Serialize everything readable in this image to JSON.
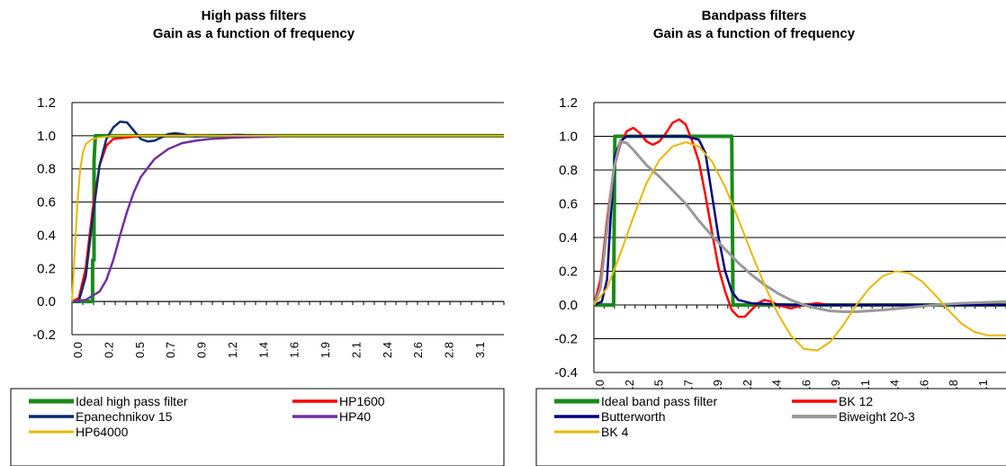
{
  "chart_data": [
    {
      "type": "line",
      "title": "High pass filters",
      "subtitle": "Gain as a function of frequency",
      "ylim": [
        -0.2,
        1.2
      ],
      "xlim": [
        0,
        3.14
      ],
      "yticks": [
        "1.2",
        "1.0",
        "0.8",
        "0.6",
        "0.4",
        "0.2",
        "0.0",
        "-0.2"
      ],
      "xticks": [
        "0.0",
        "0.2",
        "0.5",
        "0.7",
        "0.9",
        "1.2",
        "1.4",
        "1.6",
        "1.9",
        "2.1",
        "2.4",
        "2.6",
        "2.8",
        "3.1"
      ],
      "grid": true,
      "legend_position": "bottom",
      "series": [
        {
          "name": "Ideal high pass filter",
          "color": "#1a8a1a",
          "width": 4,
          "points": [
            [
              0,
              0
            ],
            [
              0.15,
              0
            ],
            [
              0.15,
              0.25
            ],
            [
              0.16,
              0.25
            ],
            [
              0.16,
              0.85
            ],
            [
              0.17,
              1
            ],
            [
              3.14,
              1
            ]
          ]
        },
        {
          "name": "HP1600",
          "color": "#ff0000",
          "width": 2.5,
          "points": [
            [
              0,
              0
            ],
            [
              0.05,
              0.02
            ],
            [
              0.1,
              0.2
            ],
            [
              0.15,
              0.55
            ],
            [
              0.2,
              0.82
            ],
            [
              0.25,
              0.94
            ],
            [
              0.3,
              0.98
            ],
            [
              0.4,
              0.99
            ],
            [
              0.5,
              1
            ],
            [
              3.14,
              1
            ]
          ]
        },
        {
          "name": "Epanechnikov 15",
          "color": "#0a2a6e",
          "width": 2.5,
          "points": [
            [
              0,
              0
            ],
            [
              0.05,
              0
            ],
            [
              0.1,
              0.15
            ],
            [
              0.15,
              0.5
            ],
            [
              0.2,
              0.82
            ],
            [
              0.25,
              0.98
            ],
            [
              0.3,
              1.05
            ],
            [
              0.35,
              1.085
            ],
            [
              0.4,
              1.08
            ],
            [
              0.45,
              1.03
            ],
            [
              0.5,
              0.98
            ],
            [
              0.55,
              0.965
            ],
            [
              0.6,
              0.97
            ],
            [
              0.65,
              0.99
            ],
            [
              0.7,
              1.01
            ],
            [
              0.75,
              1.015
            ],
            [
              0.8,
              1.01
            ],
            [
              0.85,
              1.0
            ],
            [
              0.9,
              0.995
            ],
            [
              1.0,
              1.0
            ],
            [
              1.2,
              1.005
            ],
            [
              1.4,
              1.0
            ],
            [
              3.14,
              1
            ]
          ]
        },
        {
          "name": "HP40",
          "color": "#7030a0",
          "width": 2.5,
          "points": [
            [
              0,
              0
            ],
            [
              0.1,
              0.01
            ],
            [
              0.2,
              0.06
            ],
            [
              0.25,
              0.13
            ],
            [
              0.3,
              0.25
            ],
            [
              0.35,
              0.4
            ],
            [
              0.4,
              0.54
            ],
            [
              0.45,
              0.66
            ],
            [
              0.5,
              0.75
            ],
            [
              0.6,
              0.86
            ],
            [
              0.7,
              0.92
            ],
            [
              0.8,
              0.955
            ],
            [
              0.9,
              0.97
            ],
            [
              1.0,
              0.98
            ],
            [
              1.2,
              0.99
            ],
            [
              1.5,
              0.995
            ]
          ]
        },
        {
          "name": "HP64000",
          "color": "#e6b800",
          "width": 2,
          "points": [
            [
              0,
              0
            ],
            [
              0.02,
              0.3
            ],
            [
              0.04,
              0.6
            ],
            [
              0.06,
              0.8
            ],
            [
              0.08,
              0.9
            ],
            [
              0.1,
              0.95
            ],
            [
              0.15,
              0.98
            ],
            [
              0.2,
              0.99
            ],
            [
              0.3,
              1
            ],
            [
              3.14,
              1
            ]
          ]
        }
      ]
    },
    {
      "type": "line",
      "title": "Bandpass filters",
      "subtitle": "Gain as a function of frequency",
      "ylim": [
        -0.4,
        1.2
      ],
      "xlim": [
        0,
        3.14
      ],
      "yticks": [
        "1.2",
        "1.0",
        "0.8",
        "0.6",
        "0.4",
        "0.2",
        "0.0",
        "-0.2",
        "-0.4"
      ],
      "xticks": [
        "0.0",
        "0.2",
        "0.5",
        "0.7",
        "0.9",
        "1.2",
        "1.4",
        "1.6",
        "1.9",
        "2.1",
        "2.4",
        "2.6",
        "2.8",
        "3.1"
      ],
      "grid": true,
      "legend_position": "bottom",
      "series": [
        {
          "name": "Ideal band pass filter",
          "color": "#1a8a1a",
          "width": 4,
          "points": [
            [
              0,
              0
            ],
            [
              0.15,
              0
            ],
            [
              0.16,
              1
            ],
            [
              1.05,
              1
            ],
            [
              1.06,
              0
            ],
            [
              3.14,
              0
            ]
          ]
        },
        {
          "name": "BK 12",
          "color": "#ff0000",
          "width": 2.5,
          "points": [
            [
              0,
              0
            ],
            [
              0.05,
              0.15
            ],
            [
              0.1,
              0.5
            ],
            [
              0.15,
              0.8
            ],
            [
              0.2,
              0.95
            ],
            [
              0.25,
              1.03
            ],
            [
              0.3,
              1.05
            ],
            [
              0.35,
              1.02
            ],
            [
              0.4,
              0.97
            ],
            [
              0.45,
              0.95
            ],
            [
              0.5,
              0.97
            ],
            [
              0.55,
              1.02
            ],
            [
              0.6,
              1.08
            ],
            [
              0.65,
              1.1
            ],
            [
              0.7,
              1.07
            ],
            [
              0.75,
              0.97
            ],
            [
              0.8,
              0.85
            ],
            [
              0.85,
              0.65
            ],
            [
              0.9,
              0.43
            ],
            [
              0.95,
              0.22
            ],
            [
              1.0,
              0.08
            ],
            [
              1.05,
              -0.03
            ],
            [
              1.1,
              -0.07
            ],
            [
              1.15,
              -0.07
            ],
            [
              1.2,
              -0.03
            ],
            [
              1.25,
              0.01
            ],
            [
              1.3,
              0.03
            ],
            [
              1.35,
              0.02
            ],
            [
              1.4,
              0.0
            ],
            [
              1.5,
              -0.02
            ],
            [
              1.6,
              0.0
            ],
            [
              1.7,
              0.01
            ],
            [
              1.8,
              0.0
            ],
            [
              2.0,
              0.0
            ],
            [
              3.14,
              0
            ]
          ]
        },
        {
          "name": "Butterworth",
          "color": "#000080",
          "width": 2.5,
          "points": [
            [
              0,
              0
            ],
            [
              0.06,
              0.02
            ],
            [
              0.1,
              0.15
            ],
            [
              0.13,
              0.55
            ],
            [
              0.16,
              0.88
            ],
            [
              0.2,
              0.97
            ],
            [
              0.25,
              1.0
            ],
            [
              0.7,
              1.0
            ],
            [
              0.8,
              0.98
            ],
            [
              0.85,
              0.9
            ],
            [
              0.9,
              0.65
            ],
            [
              0.95,
              0.4
            ],
            [
              1.0,
              0.2
            ],
            [
              1.05,
              0.08
            ],
            [
              1.1,
              0.03
            ],
            [
              1.2,
              0.01
            ],
            [
              1.5,
              0
            ],
            [
              3.14,
              0
            ]
          ]
        },
        {
          "name": "Biweight 20-3",
          "color": "#999999",
          "width": 3,
          "points": [
            [
              0,
              0
            ],
            [
              0.05,
              0.1
            ],
            [
              0.1,
              0.45
            ],
            [
              0.15,
              0.8
            ],
            [
              0.2,
              0.97
            ],
            [
              0.25,
              0.96
            ],
            [
              0.3,
              0.92
            ],
            [
              0.4,
              0.83
            ],
            [
              0.5,
              0.76
            ],
            [
              0.6,
              0.68
            ],
            [
              0.7,
              0.6
            ],
            [
              0.8,
              0.5
            ],
            [
              0.9,
              0.41
            ],
            [
              1.0,
              0.33
            ],
            [
              1.1,
              0.25
            ],
            [
              1.2,
              0.18
            ],
            [
              1.3,
              0.12
            ],
            [
              1.4,
              0.07
            ],
            [
              1.5,
              0.03
            ],
            [
              1.6,
              0.0
            ],
            [
              1.7,
              -0.02
            ],
            [
              1.8,
              -0.035
            ],
            [
              1.9,
              -0.04
            ],
            [
              2.0,
              -0.04
            ],
            [
              2.2,
              -0.03
            ],
            [
              2.4,
              -0.015
            ],
            [
              2.6,
              0.0
            ],
            [
              2.8,
              0.01
            ],
            [
              3.14,
              0.02
            ]
          ]
        },
        {
          "name": "BK 4",
          "color": "#e6b800",
          "width": 2,
          "points": [
            [
              0,
              0
            ],
            [
              0.1,
              0.1
            ],
            [
              0.2,
              0.3
            ],
            [
              0.3,
              0.52
            ],
            [
              0.4,
              0.72
            ],
            [
              0.5,
              0.86
            ],
            [
              0.6,
              0.94
            ],
            [
              0.7,
              0.965
            ],
            [
              0.8,
              0.94
            ],
            [
              0.9,
              0.85
            ],
            [
              1.0,
              0.7
            ],
            [
              1.1,
              0.51
            ],
            [
              1.2,
              0.31
            ],
            [
              1.3,
              0.12
            ],
            [
              1.4,
              -0.05
            ],
            [
              1.5,
              -0.18
            ],
            [
              1.6,
              -0.26
            ],
            [
              1.7,
              -0.27
            ],
            [
              1.8,
              -0.22
            ],
            [
              1.9,
              -0.12
            ],
            [
              2.0,
              0.0
            ],
            [
              2.1,
              0.1
            ],
            [
              2.2,
              0.17
            ],
            [
              2.3,
              0.2
            ],
            [
              2.4,
              0.19
            ],
            [
              2.5,
              0.14
            ],
            [
              2.6,
              0.06
            ],
            [
              2.7,
              -0.03
            ],
            [
              2.8,
              -0.11
            ],
            [
              2.9,
              -0.16
            ],
            [
              3.0,
              -0.18
            ],
            [
              3.14,
              -0.18
            ]
          ]
        }
      ]
    }
  ]
}
